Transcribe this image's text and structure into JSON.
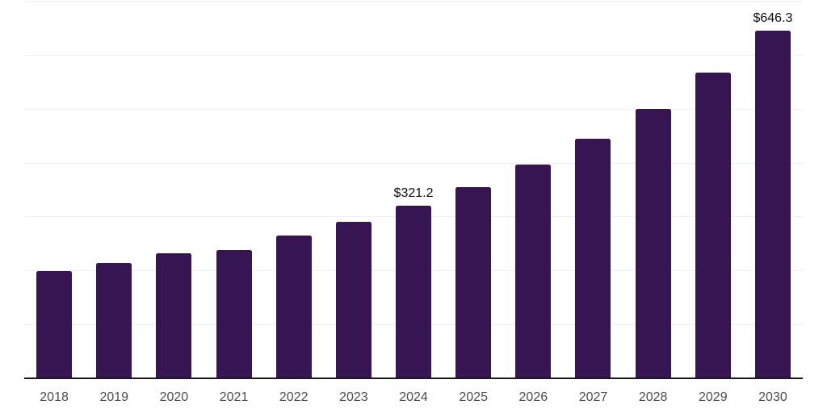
{
  "chart_data": {
    "type": "bar",
    "title": "",
    "xlabel": "",
    "ylabel": "",
    "categories": [
      "2018",
      "2019",
      "2020",
      "2021",
      "2022",
      "2023",
      "2024",
      "2025",
      "2026",
      "2027",
      "2028",
      "2029",
      "2030"
    ],
    "values": [
      199.7,
      215.6,
      233.4,
      239.4,
      266.2,
      292.4,
      321.2,
      356.0,
      397.9,
      446.1,
      501.0,
      568.3,
      646.3
    ],
    "labeled_points": [
      {
        "index": 6,
        "category": "2024",
        "label": "$321.2"
      },
      {
        "index": 12,
        "category": "2030",
        "label": "$646.3"
      }
    ],
    "ylim": [
      0,
      700
    ],
    "gridline_step": 100,
    "grid": true,
    "legend": false,
    "y_axis_tick_labels_visible": false,
    "colors": {
      "bar": "#371553",
      "axis_line": "#1a1a1a",
      "gridline": "#efefef",
      "value_label": "#0d0d0d",
      "tick_label": "#4d4d4d",
      "background": "#ffffff"
    }
  }
}
